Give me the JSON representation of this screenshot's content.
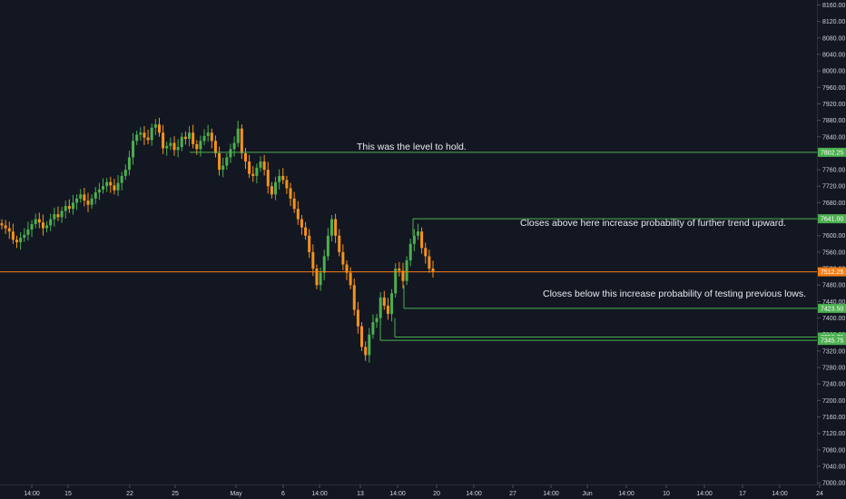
{
  "chart_data": {
    "type": "candlestick",
    "y_axis": {
      "ticks": [
        "8160.00",
        "8120.00",
        "8080.00",
        "8040.00",
        "8000.00",
        "7960.00",
        "7920.00",
        "7880.00",
        "7840.00",
        "7800.00",
        "7760.00",
        "7720.00",
        "7680.00",
        "7640.00",
        "7600.00",
        "7560.00",
        "7520.00",
        "7480.00",
        "7440.00",
        "7400.00",
        "7360.00",
        "7320.00",
        "7280.00",
        "7240.00",
        "7200.00",
        "7160.00",
        "7120.00",
        "7080.00",
        "7040.00",
        "7000.00"
      ],
      "range": [
        6996,
        8172
      ]
    },
    "x_axis": {
      "ticks": [
        "14:00",
        "15",
        "22",
        "25",
        "May",
        "6",
        "14:00",
        "13",
        "14:00",
        "20",
        "14:00",
        "27",
        "14:00",
        "Jun",
        "14:00",
        "10",
        "14:00",
        "17",
        "14:00",
        "24"
      ]
    },
    "levels": [
      {
        "value": 7802.25,
        "label": "7802.25",
        "color": "#4caf50"
      },
      {
        "value": 7641.0,
        "label": "7641.00",
        "color": "#4caf50"
      },
      {
        "value": 7512.25,
        "label": "7512.25",
        "color": "#f57f17"
      },
      {
        "value": 7423.5,
        "label": "7423.50",
        "color": "#4caf50"
      },
      {
        "value": 7353.75,
        "label": "7353.75",
        "color": "#4caf50"
      },
      {
        "value": 7345.75,
        "label": "7345.75",
        "color": "#4caf50"
      }
    ],
    "annotations": [
      "This was the level to hold.",
      "Closes above here increase probability of further trend upward.",
      "Closes below this increase probability of testing previous lows."
    ],
    "candles_close": [
      7625,
      7618,
      7610,
      7590,
      7584,
      7595,
      7602,
      7615,
      7628,
      7640,
      7632,
      7618,
      7625,
      7640,
      7652,
      7645,
      7660,
      7672,
      7665,
      7680,
      7690,
      7700,
      7685,
      7675,
      7690,
      7705,
      7712,
      7720,
      7730,
      7722,
      7710,
      7728,
      7745,
      7760,
      7790,
      7830,
      7845,
      7850,
      7838,
      7832,
      7862,
      7870,
      7850,
      7812,
      7818,
      7825,
      7808,
      7815,
      7840,
      7835,
      7850,
      7822,
      7810,
      7830,
      7842,
      7850,
      7830,
      7800,
      7760,
      7770,
      7790,
      7810,
      7825,
      7860,
      7800,
      7780,
      7750,
      7745,
      7765,
      7780,
      7760,
      7720,
      7700,
      7730,
      7745,
      7735,
      7715,
      7690,
      7665,
      7640,
      7620,
      7600,
      7560,
      7520,
      7480,
      7510,
      7550,
      7600,
      7640,
      7600,
      7560,
      7530,
      7510,
      7480,
      7420,
      7380,
      7330,
      7310,
      7360,
      7390,
      7400,
      7450,
      7430,
      7410,
      7460,
      7520,
      7515,
      7490,
      7540,
      7580,
      7600,
      7610,
      7570,
      7550,
      7520,
      7512
    ],
    "candles_open": [
      7630,
      7625,
      7618,
      7610,
      7590,
      7584,
      7595,
      7602,
      7615,
      7628,
      7640,
      7632,
      7618,
      7625,
      7640,
      7652,
      7645,
      7660,
      7672,
      7665,
      7680,
      7690,
      7700,
      7685,
      7675,
      7690,
      7705,
      7712,
      7720,
      7730,
      7722,
      7710,
      7728,
      7745,
      7760,
      7790,
      7830,
      7845,
      7850,
      7838,
      7832,
      7862,
      7870,
      7850,
      7812,
      7818,
      7825,
      7808,
      7815,
      7840,
      7835,
      7850,
      7822,
      7810,
      7830,
      7842,
      7850,
      7830,
      7800,
      7760,
      7770,
      7790,
      7810,
      7825,
      7860,
      7800,
      7780,
      7750,
      7745,
      7765,
      7780,
      7760,
      7720,
      7700,
      7730,
      7745,
      7735,
      7715,
      7690,
      7665,
      7640,
      7620,
      7600,
      7560,
      7520,
      7480,
      7510,
      7550,
      7600,
      7640,
      7600,
      7560,
      7530,
      7510,
      7480,
      7420,
      7380,
      7330,
      7310,
      7360,
      7390,
      7400,
      7450,
      7430,
      7410,
      7460,
      7520,
      7515,
      7490,
      7540,
      7580,
      7600,
      7610,
      7570,
      7550,
      7520
    ]
  }
}
